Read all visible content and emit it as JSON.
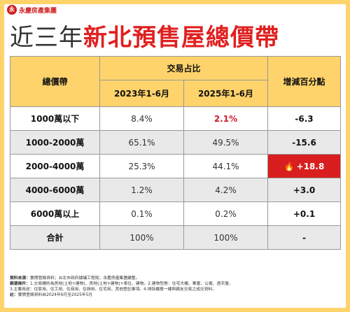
{
  "logo": {
    "mark": "永",
    "name": "永慶房產集團"
  },
  "title": {
    "part1": "近三年",
    "part2": "新北預售屋總價帶"
  },
  "table": {
    "h_total": "總價帶",
    "h_share": "交易占比",
    "h_change": "增減百分點",
    "h_col1": "2023年1-6月",
    "h_col2": "2025年1-6月",
    "rows": [
      {
        "band": "1000萬以下",
        "y2023": "8.4%",
        "y2025": "2.1%",
        "change": "-6.3"
      },
      {
        "band": "1000-2000萬",
        "y2023": "65.1%",
        "y2025": "49.5%",
        "change": "-15.6"
      },
      {
        "band": "2000-4000萬",
        "y2023": "25.3%",
        "y2025": "44.1%",
        "change": "+18.8"
      },
      {
        "band": "4000-6000萬",
        "y2023": "1.2%",
        "y2025": "4.2%",
        "change": "+3.0"
      },
      {
        "band": "6000萬以上",
        "y2023": "0.1%",
        "y2025": "0.2%",
        "change": "+0.1"
      },
      {
        "band": "合計",
        "y2023": "100%",
        "y2025": "100%",
        "change": "-"
      }
    ]
  },
  "notes": {
    "source_k": "資料來源：",
    "source_v": "實價登錄資料；台北市政府據議工程局；永慶房產集團彙整。",
    "filter_k": "篩選條件：",
    "filter_v": "1.交易標的為房地(土地+建物)、房地(土地+建物)+車位、建物。2.建物型態：住宅大樓、華廈、公寓、透天厝。",
    "filter_v2": "3.主要用途：住家用、住工用、住商用、住辦用、住宅用、其他登記事項。4.排除樓層一樓與親友交易之成交資料。",
    "note_k": "註：",
    "note_v": "實價登錄資料自2024年6月至2025年5月"
  },
  "colors": {
    "header": "#ffd36b",
    "accent": "#e02020",
    "highlight_cell": "#d81e1e",
    "red_value": "#d01a2b"
  }
}
